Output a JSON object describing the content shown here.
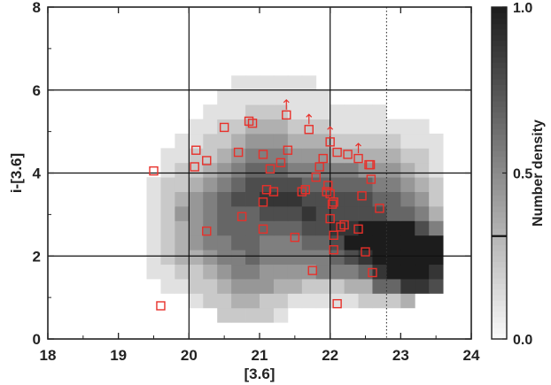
{
  "chart_data": {
    "type": "heatmap",
    "title": "",
    "xlabel": "[3.6]",
    "ylabel": "i-[3.6]",
    "xlim": [
      18,
      24
    ],
    "ylim": [
      0,
      8
    ],
    "xticks": [
      "18",
      "19",
      "20",
      "21",
      "22",
      "23",
      "24"
    ],
    "yticks": [
      "0",
      "2",
      "4",
      "6",
      "8"
    ],
    "grid_x": [
      20,
      22
    ],
    "grid_y": [
      2,
      4,
      6
    ],
    "limit_line_x": 22.8,
    "heatmap": {
      "x_start": 18.6,
      "y_start": 0.4,
      "cell_width": 0.2,
      "cell_height": 0.35,
      "rows_bottom_to_top": [
        "00000000022221000000000000",
        "00000001223322111112223000",
        "00000112234443322233668870",
        "00001122345544445556899980",
        "00001233455655555678999990",
        "00001234556655566799999990",
        "00001234566666677889999750",
        "00001244566677787777766530",
        "00001234567788877777665420",
        "00001223456777766666554320",
        "00000122345666555554443210",
        "00000112234555444333332210",
        "00000011223444333222221110",
        "00000001122333222111111100",
        "00000000111222111111100000",
        "00000000011111111000000000",
        "00000000001111110000000000"
      ]
    },
    "series": [
      {
        "marker": "open-square",
        "color": "#e8302a",
        "points": [
          [
            19.5,
            4.05
          ],
          [
            19.6,
            0.8
          ],
          [
            20.1,
            4.55
          ],
          [
            20.08,
            4.15
          ],
          [
            20.25,
            4.3
          ],
          [
            20.25,
            2.6
          ],
          [
            20.5,
            5.1
          ],
          [
            20.7,
            4.5
          ],
          [
            20.75,
            2.95
          ],
          [
            20.85,
            5.25
          ],
          [
            20.9,
            5.2
          ],
          [
            21.05,
            4.45
          ],
          [
            21.1,
            3.6
          ],
          [
            21.05,
            3.3
          ],
          [
            21.05,
            2.65
          ],
          [
            21.15,
            4.1
          ],
          [
            21.2,
            3.55
          ],
          [
            21.3,
            4.25
          ],
          [
            21.38,
            5.4
          ],
          [
            21.4,
            4.55
          ],
          [
            21.5,
            2.45
          ],
          [
            21.6,
            3.55
          ],
          [
            21.65,
            3.6
          ],
          [
            21.7,
            5.05
          ],
          [
            21.75,
            1.65
          ],
          [
            21.8,
            3.9
          ],
          [
            21.85,
            4.15
          ],
          [
            21.9,
            4.35
          ],
          [
            21.95,
            3.55
          ],
          [
            21.97,
            3.7
          ],
          [
            22.0,
            4.75
          ],
          [
            22.0,
            3.5
          ],
          [
            22.03,
            3.25
          ],
          [
            22.05,
            3.3
          ],
          [
            22.05,
            2.5
          ],
          [
            22.05,
            2.15
          ],
          [
            22.1,
            4.5
          ],
          [
            22.0,
            2.9
          ],
          [
            22.15,
            2.7
          ],
          [
            22.1,
            0.85
          ],
          [
            22.2,
            2.75
          ],
          [
            22.25,
            4.45
          ],
          [
            22.4,
            4.35
          ],
          [
            22.4,
            2.65
          ],
          [
            22.45,
            3.45
          ],
          [
            22.5,
            2.1
          ],
          [
            22.55,
            4.2
          ],
          [
            22.57,
            4.2
          ],
          [
            22.6,
            1.6
          ],
          [
            22.7,
            3.15
          ],
          [
            22.58,
            3.85
          ]
        ]
      }
    ],
    "upper_limits": [
      [
        21.38,
        5.4
      ],
      [
        21.7,
        5.05
      ],
      [
        22.0,
        4.75
      ],
      [
        22.4,
        4.35
      ]
    ],
    "colorbar": {
      "label": "Number density",
      "ticks": [
        "0.0",
        "0.5",
        "1.0"
      ],
      "range": [
        0,
        1
      ],
      "marker_value": 0.31
    }
  }
}
